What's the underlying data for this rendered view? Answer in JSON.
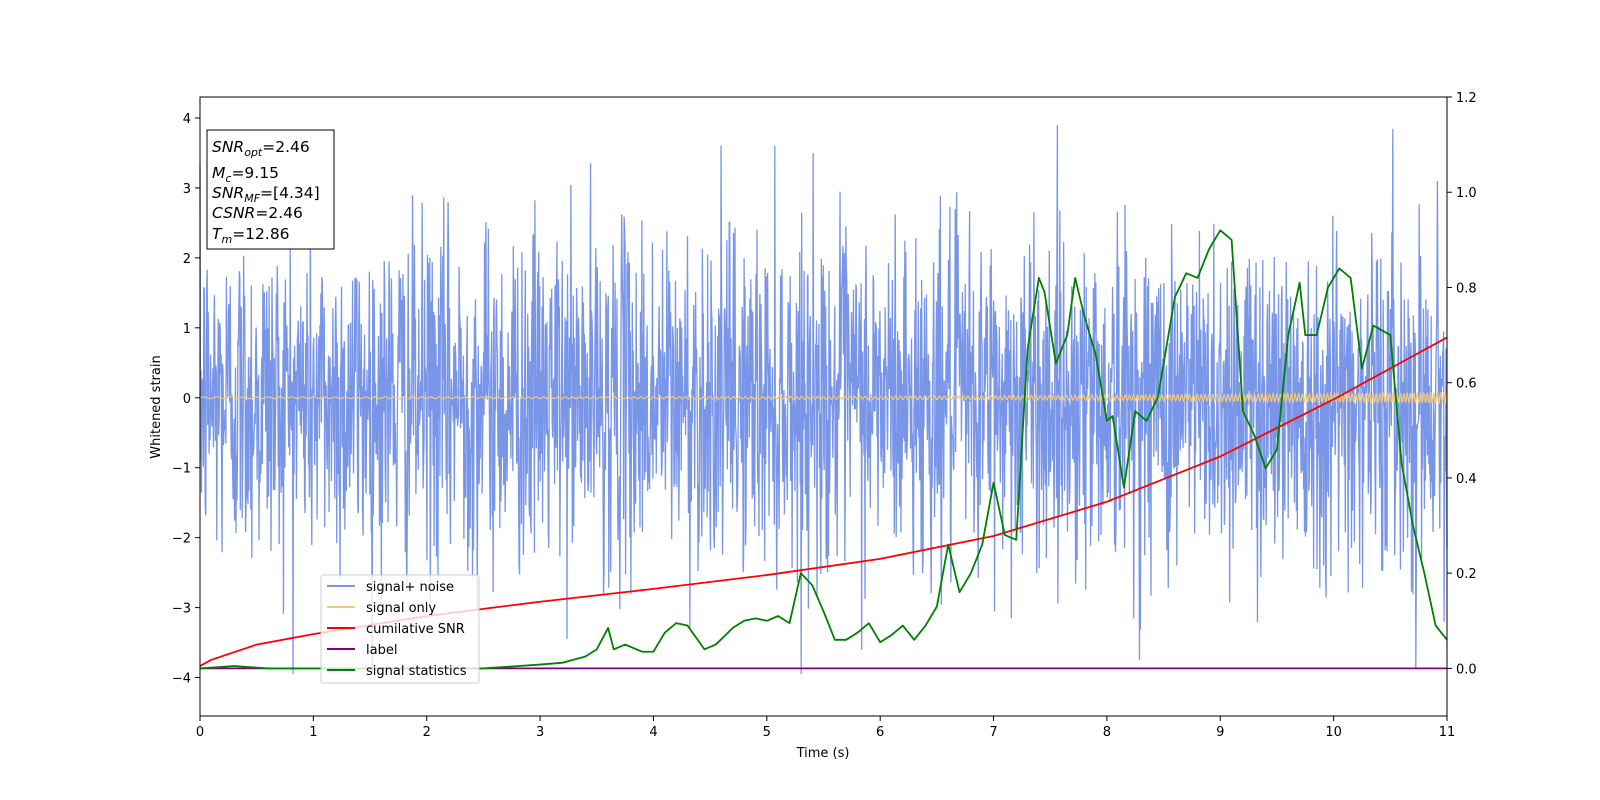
{
  "chart_data": {
    "type": "line",
    "xlabel": "Time (s)",
    "ylabel": "Whitened strain",
    "xlim": [
      0,
      11
    ],
    "ylim": [
      -4.55,
      4.3
    ],
    "y2lim": [
      -0.1,
      1.2
    ],
    "x_ticks": [
      0,
      1,
      2,
      3,
      4,
      5,
      6,
      7,
      8,
      9,
      10,
      11
    ],
    "x_tick_labels": [
      "0",
      "1",
      "2",
      "3",
      "4",
      "5",
      "6",
      "7",
      "8",
      "9",
      "10",
      "11"
    ],
    "y_ticks": [
      4,
      3,
      2,
      1,
      0,
      -1,
      -2,
      -3,
      -4
    ],
    "y_tick_labels": [
      "4",
      "3",
      "2",
      "1",
      "0",
      "−1",
      "−2",
      "−3",
      "−4"
    ],
    "y2_ticks": [
      1.2,
      1.0,
      0.8,
      0.6,
      0.4,
      0.2,
      0.0
    ],
    "y2_tick_labels": [
      "1.2",
      "1.0",
      "0.8",
      "0.6",
      "0.4",
      "0.2",
      "0.0"
    ],
    "grid": false,
    "legend_position": "lower-left",
    "annotation": {
      "snr_opt_value": "=2.46",
      "mc_value": "=9.15",
      "snr_mf_value": "=[4.34]",
      "csnr_value": "=2.46",
      "tm_value": "=12.86"
    },
    "series": [
      {
        "name": "signal+ noise",
        "axis": "left",
        "color": "#7895e8",
        "style": "dense noise, approx. ±1.2 std, peaks to about ±3.9",
        "amplitude": 1.2
      },
      {
        "name": "signal only",
        "axis": "left",
        "color": "#f5c87a",
        "style": "low-amplitude chirp centered on 0, growing to about ±0.07 near t=11",
        "amplitude_end": 0.07
      },
      {
        "name": "cumilative SNR",
        "axis": "right",
        "color": "#ff0000",
        "x": [
          0,
          0.1,
          0.5,
          1,
          2,
          3,
          4,
          5,
          6,
          7,
          8,
          9,
          10,
          10.5,
          11
        ],
        "y": [
          0.005,
          0.018,
          0.05,
          0.072,
          0.11,
          0.14,
          0.167,
          0.196,
          0.23,
          0.278,
          0.35,
          0.445,
          0.565,
          0.63,
          0.695
        ]
      },
      {
        "name": "label",
        "axis": "right",
        "color": "#800080",
        "x": [
          0,
          11
        ],
        "y": [
          0,
          0
        ]
      },
      {
        "name": "signal statistics",
        "axis": "right",
        "color": "#008000",
        "x": [
          0,
          0.3,
          0.6,
          1.0,
          1.5,
          2.0,
          2.5,
          3.0,
          3.2,
          3.4,
          3.5,
          3.6,
          3.65,
          3.75,
          3.9,
          4.0,
          4.1,
          4.2,
          4.3,
          4.45,
          4.55,
          4.7,
          4.8,
          4.9,
          5.0,
          5.1,
          5.2,
          5.3,
          5.4,
          5.5,
          5.6,
          5.7,
          5.8,
          5.9,
          6.0,
          6.1,
          6.2,
          6.3,
          6.4,
          6.5,
          6.6,
          6.7,
          6.8,
          6.9,
          7.0,
          7.1,
          7.2,
          7.3,
          7.4,
          7.45,
          7.55,
          7.65,
          7.72,
          7.8,
          7.9,
          8.0,
          8.05,
          8.15,
          8.25,
          8.35,
          8.45,
          8.6,
          8.7,
          8.8,
          8.9,
          9.0,
          9.1,
          9.2,
          9.3,
          9.4,
          9.5,
          9.6,
          9.7,
          9.75,
          9.85,
          9.95,
          10.05,
          10.15,
          10.25,
          10.35,
          10.5,
          10.6,
          10.7,
          10.8,
          10.9,
          11.0
        ],
        "y": [
          0.0,
          0.005,
          0.0,
          0.0,
          0.0,
          0.0,
          0.0,
          0.008,
          0.012,
          0.025,
          0.04,
          0.085,
          0.04,
          0.05,
          0.035,
          0.035,
          0.075,
          0.095,
          0.09,
          0.04,
          0.05,
          0.085,
          0.1,
          0.105,
          0.1,
          0.11,
          0.095,
          0.2,
          0.175,
          0.12,
          0.06,
          0.06,
          0.075,
          0.095,
          0.055,
          0.07,
          0.09,
          0.06,
          0.09,
          0.13,
          0.26,
          0.16,
          0.2,
          0.26,
          0.39,
          0.28,
          0.27,
          0.67,
          0.82,
          0.79,
          0.64,
          0.7,
          0.82,
          0.74,
          0.66,
          0.52,
          0.53,
          0.38,
          0.54,
          0.52,
          0.57,
          0.78,
          0.83,
          0.82,
          0.88,
          0.92,
          0.9,
          0.54,
          0.49,
          0.42,
          0.46,
          0.7,
          0.81,
          0.7,
          0.7,
          0.8,
          0.84,
          0.82,
          0.63,
          0.72,
          0.7,
          0.43,
          0.3,
          0.2,
          0.09,
          0.06
        ]
      }
    ]
  }
}
